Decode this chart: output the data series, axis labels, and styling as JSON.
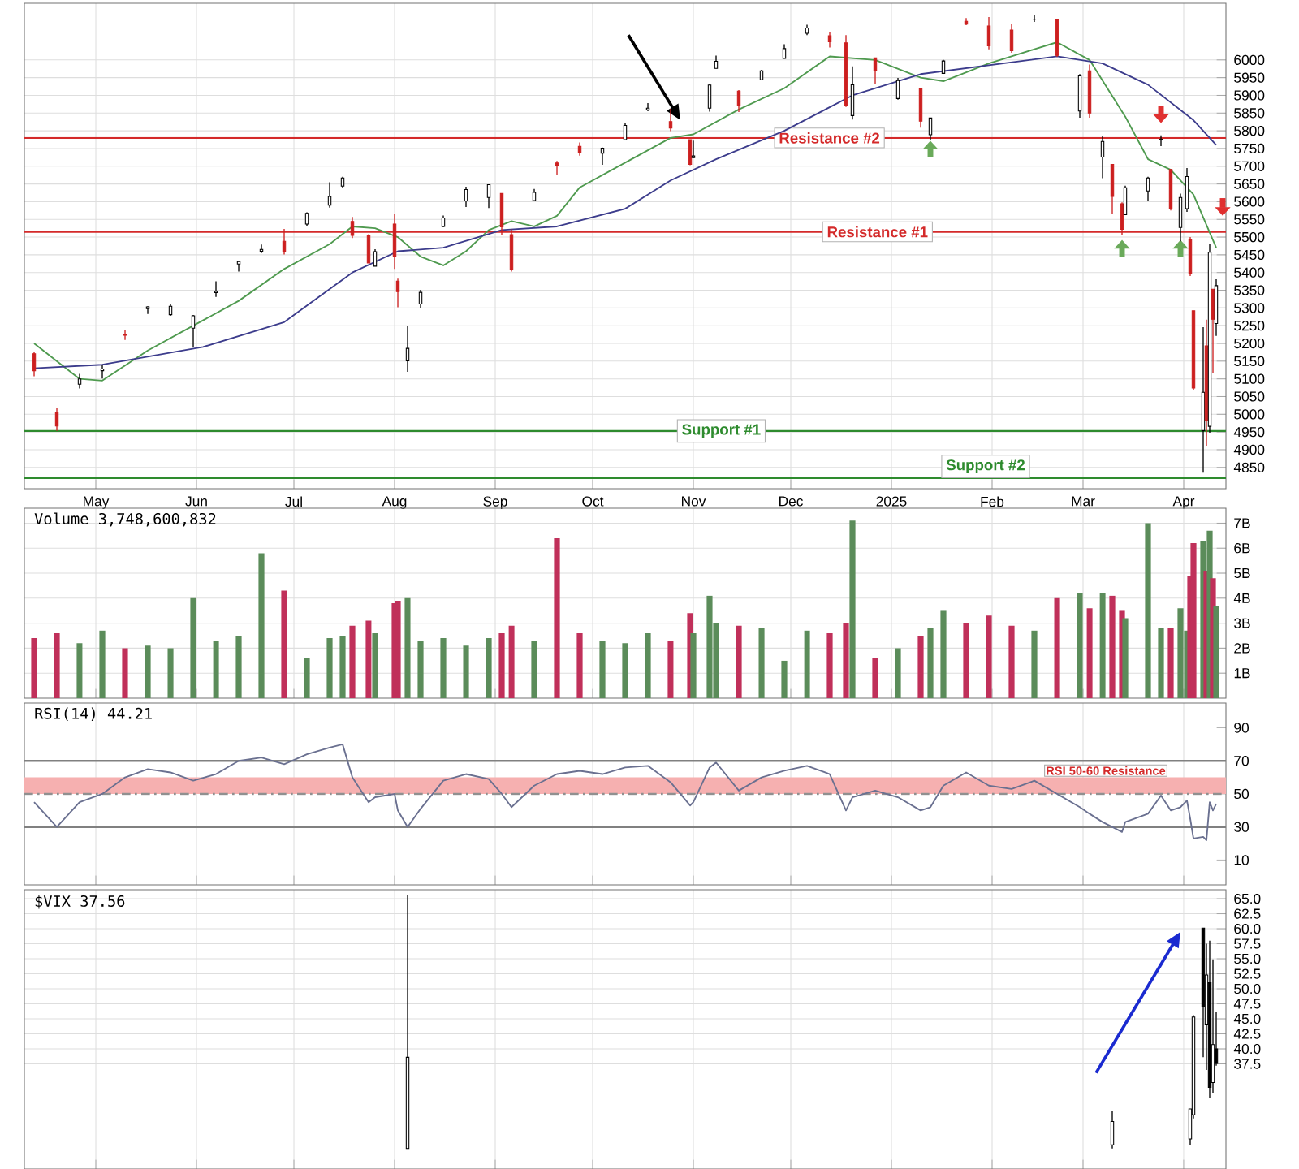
{
  "chart_data": [
    {
      "type": "candlestick",
      "x": [
        "2024-04-12",
        "2024-04-19",
        "2024-04-26",
        "2024-05-03",
        "2024-05-10",
        "2024-05-17",
        "2024-05-24",
        "2024-05-31",
        "2024-06-07",
        "2024-06-14",
        "2024-06-21",
        "2024-06-28",
        "2024-07-05",
        "2024-07-12",
        "2024-07-16",
        "2024-07-19",
        "2024-07-24",
        "2024-07-26",
        "2024-08-01",
        "2024-08-02",
        "2024-08-05",
        "2024-08-09",
        "2024-08-16",
        "2024-08-23",
        "2024-08-30",
        "2024-09-03",
        "2024-09-06",
        "2024-09-13",
        "2024-09-20",
        "2024-09-27",
        "2024-10-04",
        "2024-10-11",
        "2024-10-18",
        "2024-10-25",
        "2024-10-31",
        "2024-11-01",
        "2024-11-06",
        "2024-11-08",
        "2024-11-15",
        "2024-11-22",
        "2024-11-29",
        "2024-12-06",
        "2024-12-13",
        "2024-12-18",
        "2024-12-20",
        "2024-12-27",
        "2025-01-03",
        "2025-01-10",
        "2025-01-13",
        "2025-01-17",
        "2025-01-24",
        "2025-01-31",
        "2025-02-07",
        "2025-02-14",
        "2025-02-21",
        "2025-02-28",
        "2025-03-03",
        "2025-03-07",
        "2025-03-10",
        "2025-03-13",
        "2025-03-14",
        "2025-03-21",
        "2025-03-25",
        "2025-03-28",
        "2025-03-31",
        "2025-04-02",
        "2025-04-03",
        "2025-04-04",
        "2025-04-07",
        "2025-04-08",
        "2025-04-09",
        "2025-04-10",
        "2025-04-11"
      ],
      "ohlc": [
        [
          5171,
          5175,
          5107,
          5123
        ],
        [
          5005,
          5019,
          4953,
          4967
        ],
        [
          5085,
          5114,
          5073,
          5100
        ],
        [
          5123,
          5139,
          5101,
          5128
        ],
        [
          5225,
          5239,
          5210,
          5223
        ],
        [
          5298,
          5305,
          5283,
          5303
        ],
        [
          5281,
          5311,
          5278,
          5305
        ],
        [
          5243,
          5280,
          5191,
          5278
        ],
        [
          5343,
          5375,
          5331,
          5347
        ],
        [
          5424,
          5432,
          5403,
          5431
        ],
        [
          5460,
          5479,
          5455,
          5465
        ],
        [
          5488,
          5523,
          5451,
          5460
        ],
        [
          5537,
          5570,
          5531,
          5567
        ],
        [
          5590,
          5655,
          5583,
          5615
        ],
        [
          5644,
          5670,
          5640,
          5667
        ],
        [
          5544,
          5557,
          5497,
          5505
        ],
        [
          5505,
          5508,
          5427,
          5427
        ],
        [
          5418,
          5466,
          5418,
          5459
        ],
        [
          5537,
          5566,
          5410,
          5446
        ],
        [
          5376,
          5383,
          5302,
          5346
        ],
        [
          5151,
          5250,
          5120,
          5186
        ],
        [
          5311,
          5351,
          5300,
          5344
        ],
        [
          5530,
          5561,
          5528,
          5554
        ],
        [
          5602,
          5642,
          5585,
          5634
        ],
        [
          5612,
          5648,
          5582,
          5648
        ],
        [
          5623,
          5623,
          5506,
          5529
        ],
        [
          5507,
          5522,
          5403,
          5408
        ],
        [
          5603,
          5636,
          5601,
          5626
        ],
        [
          5709,
          5715,
          5675,
          5703
        ],
        [
          5756,
          5767,
          5730,
          5738
        ],
        [
          5737,
          5753,
          5704,
          5751
        ],
        [
          5775,
          5822,
          5775,
          5815
        ],
        [
          5859,
          5878,
          5855,
          5864
        ],
        [
          5826,
          5862,
          5799,
          5808
        ],
        [
          5775,
          5775,
          5703,
          5705
        ],
        [
          5724,
          5772,
          5723,
          5729
        ],
        [
          5864,
          5933,
          5854,
          5929
        ],
        [
          5976,
          6012,
          5976,
          5996
        ],
        [
          5912,
          5915,
          5853,
          5870
        ],
        [
          5944,
          5972,
          5944,
          5969
        ],
        [
          6004,
          6044,
          6004,
          6032
        ],
        [
          6075,
          6099,
          6070,
          6090
        ],
        [
          6068,
          6079,
          6035,
          6051
        ],
        [
          6048,
          6070,
          5867,
          5872
        ],
        [
          5843,
          5982,
          5832,
          5930
        ],
        [
          6006,
          6006,
          5932,
          5971
        ],
        [
          5891,
          5949,
          5888,
          5942
        ],
        [
          5919,
          5920,
          5809,
          5827
        ],
        [
          5789,
          5837,
          5773,
          5836
        ],
        [
          5962,
          6000,
          5962,
          5997
        ],
        [
          6109,
          6118,
          6098,
          6101
        ],
        [
          6096,
          6121,
          6030,
          6040
        ],
        [
          6084,
          6101,
          6020,
          6026
        ],
        [
          6115,
          6127,
          6107,
          6115
        ],
        [
          6114,
          6115,
          6009,
          6013
        ],
        [
          5856,
          5960,
          5837,
          5955
        ],
        [
          5969,
          5987,
          5837,
          5850
        ],
        [
          5726,
          5786,
          5666,
          5770
        ],
        [
          5705,
          5705,
          5565,
          5615
        ],
        [
          5594,
          5598,
          5505,
          5522
        ],
        [
          5563,
          5645,
          5563,
          5639
        ],
        [
          5630,
          5670,
          5603,
          5667
        ],
        [
          5775,
          5787,
          5757,
          5776
        ],
        [
          5691,
          5691,
          5575,
          5581
        ],
        [
          5527,
          5623,
          5488,
          5612
        ],
        [
          5580,
          5695,
          5571,
          5671
        ],
        [
          5492,
          5500,
          5390,
          5397
        ],
        [
          5292,
          5292,
          5069,
          5074
        ],
        [
          4954,
          5246,
          4835,
          5062
        ],
        [
          5193,
          5267,
          4910,
          4982
        ],
        [
          4966,
          5481,
          4948,
          5457
        ],
        [
          5353,
          5353,
          5116,
          5268
        ],
        [
          5256,
          5381,
          5221,
          5363
        ]
      ],
      "colors": [
        "#cc1f1f",
        "#cc1f1f",
        "#000000",
        "#000000",
        "#cc1f1f",
        "#000000",
        "#000000",
        "#000000",
        "#000000",
        "#000000",
        "#000000",
        "#cc1f1f",
        "#000000",
        "#000000",
        "#000000",
        "#cc1f1f",
        "#cc1f1f",
        "#000000",
        "#cc1f1f",
        "#cc1f1f",
        "#000000",
        "#000000",
        "#000000",
        "#000000",
        "#000000",
        "#cc1f1f",
        "#cc1f1f",
        "#000000",
        "#cc1f1f",
        "#cc1f1f",
        "#000000",
        "#000000",
        "#000000",
        "#cc1f1f",
        "#cc1f1f",
        "#000000",
        "#000000",
        "#000000",
        "#cc1f1f",
        "#000000",
        "#000000",
        "#000000",
        "#cc1f1f",
        "#cc1f1f",
        "#000000",
        "#cc1f1f",
        "#000000",
        "#cc1f1f",
        "#000000",
        "#000000",
        "#cc1f1f",
        "#cc1f1f",
        "#cc1f1f",
        "#000000",
        "#cc1f1f",
        "#000000",
        "#cc1f1f",
        "#000000",
        "#cc1f1f",
        "#cc1f1f",
        "#000000",
        "#000000",
        "#000000",
        "#cc1f1f",
        "#000000",
        "#000000",
        "#cc1f1f",
        "#cc1f1f",
        "#000000",
        "#cc1f1f",
        "#000000",
        "#cc1f1f",
        "#000000"
      ],
      "series": [
        {
          "type": "line",
          "color": "#4f9a4f",
          "x": [
            "2024-04-12",
            "2024-04-26",
            "2024-05-03",
            "2024-05-17",
            "2024-05-31",
            "2024-06-14",
            "2024-06-28",
            "2024-07-12",
            "2024-07-19",
            "2024-07-26",
            "2024-08-02",
            "2024-08-09",
            "2024-08-16",
            "2024-08-23",
            "2024-08-30",
            "2024-09-06",
            "2024-09-13",
            "2024-09-20",
            "2024-09-27",
            "2024-10-11",
            "2024-10-25",
            "2024-11-01",
            "2024-11-15",
            "2024-11-29",
            "2024-12-13",
            "2024-12-27",
            "2025-01-10",
            "2025-01-17",
            "2025-01-31",
            "2025-02-14",
            "2025-02-21",
            "2025-03-03",
            "2025-03-14",
            "2025-03-21",
            "2025-03-28",
            "2025-04-04",
            "2025-04-11"
          ],
          "values": [
            5200,
            5100,
            5095,
            5180,
            5250,
            5320,
            5410,
            5480,
            5530,
            5525,
            5500,
            5445,
            5420,
            5460,
            5520,
            5545,
            5530,
            5560,
            5640,
            5710,
            5780,
            5790,
            5860,
            5920,
            6010,
            6000,
            5950,
            5940,
            5990,
            6030,
            6050,
            6000,
            5840,
            5720,
            5690,
            5620,
            5470
          ]
        },
        {
          "type": "line",
          "color": "#3c3c8c",
          "x": [
            "2024-04-12",
            "2024-05-03",
            "2024-06-03",
            "2024-06-28",
            "2024-07-19",
            "2024-08-02",
            "2024-08-16",
            "2024-09-03",
            "2024-09-20",
            "2024-10-11",
            "2024-10-25",
            "2024-11-08",
            "2024-11-29",
            "2024-12-20",
            "2025-01-10",
            "2025-01-31",
            "2025-02-21",
            "2025-03-07",
            "2025-03-21",
            "2025-04-04",
            "2025-04-11"
          ],
          "values": [
            5130,
            5140,
            5190,
            5260,
            5400,
            5460,
            5470,
            5520,
            5530,
            5580,
            5660,
            5720,
            5800,
            5900,
            5960,
            5985,
            6010,
            5990,
            5930,
            5830,
            5760
          ]
        }
      ],
      "ref_lines": [
        {
          "axis": "y",
          "value": 5780,
          "label": "Resistance #2",
          "color": "#d42a2a"
        },
        {
          "axis": "y",
          "value": 5515,
          "label": "Resistance #1",
          "color": "#d42a2a"
        },
        {
          "axis": "y",
          "value": 4953,
          "label": "Support #1",
          "color": "#2e8b2e"
        },
        {
          "axis": "y",
          "value": 4820,
          "label": "Support #2",
          "color": "#2e8b2e"
        }
      ],
      "xlim": [
        "2024-04-09",
        "2025-04-14"
      ],
      "xticks": [
        {
          "value": "2024-05-01",
          "label": "May"
        },
        {
          "value": "2024-06-01",
          "label": "Jun"
        },
        {
          "value": "2024-07-01",
          "label": "Jul"
        },
        {
          "value": "2024-08-01",
          "label": "Aug"
        },
        {
          "value": "2024-09-01",
          "label": "Sep"
        },
        {
          "value": "2024-10-01",
          "label": "Oct"
        },
        {
          "value": "2024-11-01",
          "label": "Nov"
        },
        {
          "value": "2024-12-01",
          "label": "Dec"
        },
        {
          "value": "2025-01-01",
          "label": "2025"
        },
        {
          "value": "2025-02-01",
          "label": "Feb"
        },
        {
          "value": "2025-03-01",
          "label": "Mar"
        },
        {
          "value": "2025-04-01",
          "label": "Apr"
        }
      ],
      "ylim": [
        4790,
        6160
      ],
      "yticks": [
        4850,
        4900,
        4950,
        5000,
        5050,
        5100,
        5150,
        5200,
        5250,
        5300,
        5350,
        5400,
        5450,
        5500,
        5550,
        5600,
        5650,
        5700,
        5750,
        5800,
        5850,
        5900,
        5950,
        6000
      ],
      "grid": true
    },
    {
      "type": "bar",
      "title": "Volume 3,748,600,832",
      "x": [
        "2024-04-12",
        "2024-04-19",
        "2024-04-26",
        "2024-05-03",
        "2024-05-10",
        "2024-05-17",
        "2024-05-24",
        "2024-05-31",
        "2024-06-07",
        "2024-06-14",
        "2024-06-21",
        "2024-06-28",
        "2024-07-05",
        "2024-07-12",
        "2024-07-16",
        "2024-07-19",
        "2024-07-24",
        "2024-07-26",
        "2024-08-01",
        "2024-08-02",
        "2024-08-05",
        "2024-08-09",
        "2024-08-16",
        "2024-08-23",
        "2024-08-30",
        "2024-09-03",
        "2024-09-06",
        "2024-09-13",
        "2024-09-20",
        "2024-09-27",
        "2024-10-04",
        "2024-10-11",
        "2024-10-18",
        "2024-10-25",
        "2024-10-31",
        "2024-11-01",
        "2024-11-06",
        "2024-11-08",
        "2024-11-15",
        "2024-11-22",
        "2024-11-29",
        "2024-12-06",
        "2024-12-13",
        "2024-12-18",
        "2024-12-20",
        "2024-12-27",
        "2025-01-03",
        "2025-01-10",
        "2025-01-13",
        "2025-01-17",
        "2025-01-24",
        "2025-01-31",
        "2025-02-07",
        "2025-02-14",
        "2025-02-21",
        "2025-02-28",
        "2025-03-03",
        "2025-03-07",
        "2025-03-10",
        "2025-03-13",
        "2025-03-14",
        "2025-03-21",
        "2025-03-25",
        "2025-03-28",
        "2025-03-31",
        "2025-04-02",
        "2025-04-03",
        "2025-04-04",
        "2025-04-07",
        "2025-04-08",
        "2025-04-09",
        "2025-04-10",
        "2025-04-11"
      ],
      "values": [
        2.4,
        2.6,
        2.2,
        2.7,
        2.0,
        2.1,
        2.0,
        4.0,
        2.3,
        2.5,
        5.8,
        4.3,
        1.6,
        2.4,
        2.5,
        2.9,
        3.1,
        2.6,
        3.8,
        3.9,
        4.0,
        2.3,
        2.4,
        2.1,
        2.4,
        2.6,
        2.9,
        2.3,
        6.4,
        2.6,
        2.3,
        2.2,
        2.6,
        2.3,
        3.4,
        2.6,
        4.1,
        3.0,
        2.9,
        2.8,
        1.5,
        2.7,
        2.6,
        3.0,
        7.1,
        1.6,
        2.0,
        2.5,
        2.8,
        3.5,
        3.0,
        3.3,
        2.9,
        2.7,
        4.0,
        4.2,
        3.6,
        4.2,
        4.1,
        3.5,
        3.2,
        7.0,
        2.8,
        2.8,
        3.6,
        2.7,
        4.9,
        6.2,
        6.3,
        5.1,
        6.7,
        4.8,
        3.7
      ],
      "colors": [
        "#c0305a",
        "#c0305a",
        "#5b8c5a",
        "#5b8c5a",
        "#c0305a",
        "#5b8c5a",
        "#5b8c5a",
        "#5b8c5a",
        "#5b8c5a",
        "#5b8c5a",
        "#5b8c5a",
        "#c0305a",
        "#5b8c5a",
        "#5b8c5a",
        "#5b8c5a",
        "#c0305a",
        "#c0305a",
        "#5b8c5a",
        "#c0305a",
        "#c0305a",
        "#5b8c5a",
        "#5b8c5a",
        "#5b8c5a",
        "#5b8c5a",
        "#5b8c5a",
        "#c0305a",
        "#c0305a",
        "#5b8c5a",
        "#c0305a",
        "#c0305a",
        "#5b8c5a",
        "#5b8c5a",
        "#5b8c5a",
        "#c0305a",
        "#c0305a",
        "#5b8c5a",
        "#5b8c5a",
        "#5b8c5a",
        "#c0305a",
        "#5b8c5a",
        "#5b8c5a",
        "#5b8c5a",
        "#c0305a",
        "#c0305a",
        "#5b8c5a",
        "#c0305a",
        "#5b8c5a",
        "#c0305a",
        "#5b8c5a",
        "#5b8c5a",
        "#c0305a",
        "#c0305a",
        "#c0305a",
        "#5b8c5a",
        "#c0305a",
        "#5b8c5a",
        "#c0305a",
        "#5b8c5a",
        "#c0305a",
        "#c0305a",
        "#5b8c5a",
        "#5b8c5a",
        "#5b8c5a",
        "#c0305a",
        "#5b8c5a",
        "#5b8c5a",
        "#c0305a",
        "#c0305a",
        "#5b8c5a",
        "#c0305a",
        "#5b8c5a",
        "#c0305a",
        "#5b8c5a"
      ],
      "xlim": [
        "2024-04-09",
        "2025-04-14"
      ],
      "xticks": [
        {
          "value": "2024-05-01",
          "label": null
        },
        {
          "value": "2024-06-01",
          "label": null
        },
        {
          "value": "2024-07-01",
          "label": null
        },
        {
          "value": "2024-08-01",
          "label": null
        },
        {
          "value": "2024-09-01",
          "label": null
        },
        {
          "value": "2024-10-01",
          "label": null
        },
        {
          "value": "2024-11-01",
          "label": null
        },
        {
          "value": "2024-12-01",
          "label": null
        },
        {
          "value": "2025-01-01",
          "label": null
        },
        {
          "value": "2025-02-01",
          "label": null
        },
        {
          "value": "2025-03-01",
          "label": null
        },
        {
          "value": "2025-04-01",
          "label": null
        }
      ],
      "ylim": [
        0,
        7.6
      ],
      "yticks": [
        {
          "value": 1,
          "label": "1B"
        },
        {
          "value": 2,
          "label": "2B"
        },
        {
          "value": 3,
          "label": "3B"
        },
        {
          "value": 4,
          "label": "4B"
        },
        {
          "value": 5,
          "label": "5B"
        },
        {
          "value": 6,
          "label": "6B"
        },
        {
          "value": 7,
          "label": "7B"
        }
      ],
      "tick_labels": "y",
      "grid": true
    },
    {
      "type": "line",
      "title": "RSI(14) 44.21",
      "x": [
        "2024-04-12",
        "2024-04-19",
        "2024-04-26",
        "2024-05-03",
        "2024-05-10",
        "2024-05-17",
        "2024-05-24",
        "2024-05-31",
        "2024-06-07",
        "2024-06-14",
        "2024-06-21",
        "2024-06-28",
        "2024-07-05",
        "2024-07-12",
        "2024-07-16",
        "2024-07-19",
        "2024-07-24",
        "2024-07-26",
        "2024-08-01",
        "2024-08-02",
        "2024-08-05",
        "2024-08-09",
        "2024-08-16",
        "2024-08-23",
        "2024-08-30",
        "2024-09-03",
        "2024-09-06",
        "2024-09-13",
        "2024-09-20",
        "2024-09-27",
        "2024-10-04",
        "2024-10-11",
        "2024-10-18",
        "2024-10-25",
        "2024-10-31",
        "2024-11-01",
        "2024-11-06",
        "2024-11-08",
        "2024-11-15",
        "2024-11-22",
        "2024-11-29",
        "2024-12-06",
        "2024-12-13",
        "2024-12-18",
        "2024-12-20",
        "2024-12-27",
        "2025-01-03",
        "2025-01-10",
        "2025-01-13",
        "2025-01-17",
        "2025-01-24",
        "2025-01-31",
        "2025-02-07",
        "2025-02-14",
        "2025-02-21",
        "2025-02-28",
        "2025-03-03",
        "2025-03-07",
        "2025-03-10",
        "2025-03-13",
        "2025-03-14",
        "2025-03-21",
        "2025-03-25",
        "2025-03-28",
        "2025-03-31",
        "2025-04-02",
        "2025-04-03",
        "2025-04-04",
        "2025-04-07",
        "2025-04-08",
        "2025-04-09",
        "2025-04-10",
        "2025-04-11"
      ],
      "series": [
        {
          "color": "#6a7090",
          "values": [
            45,
            30,
            45,
            50,
            60,
            65,
            63,
            58,
            62,
            70,
            72,
            68,
            74,
            78,
            80,
            60,
            45,
            48,
            50,
            40,
            30,
            41,
            58,
            62,
            59,
            50,
            42,
            55,
            62,
            64,
            62,
            66,
            67,
            57,
            43,
            45,
            66,
            69,
            52,
            60,
            64,
            67,
            62,
            40,
            48,
            52,
            48,
            40,
            42,
            55,
            63,
            55,
            53,
            58,
            50,
            42,
            38,
            33,
            30,
            27,
            33,
            38,
            49,
            40,
            42,
            46,
            35,
            23,
            24,
            22,
            45,
            40,
            44
          ]
        }
      ],
      "ref_lines": [
        {
          "axis": "y",
          "value": 70,
          "color": "#808080"
        },
        {
          "axis": "y",
          "value": 50,
          "color": "#909090",
          "line_style": "dashed"
        },
        {
          "axis": "y",
          "value": 30,
          "color": "#808080"
        }
      ],
      "bands": [
        {
          "axis": "y",
          "from": 50,
          "to": 60,
          "label": "RSI 50-60 Resistance",
          "color": "#f6b0b0"
        }
      ],
      "xlim": [
        "2024-04-09",
        "2025-04-14"
      ],
      "xticks": [
        {
          "value": "2024-05-01",
          "label": null
        },
        {
          "value": "2024-06-01",
          "label": null
        },
        {
          "value": "2024-07-01",
          "label": null
        },
        {
          "value": "2024-08-01",
          "label": null
        },
        {
          "value": "2024-09-01",
          "label": null
        },
        {
          "value": "2024-10-01",
          "label": null
        },
        {
          "value": "2024-11-01",
          "label": null
        },
        {
          "value": "2024-12-01",
          "label": null
        },
        {
          "value": "2025-01-01",
          "label": null
        },
        {
          "value": "2025-02-01",
          "label": null
        },
        {
          "value": "2025-03-01",
          "label": null
        },
        {
          "value": "2025-04-01",
          "label": null
        }
      ],
      "ylim": [
        -5,
        105
      ],
      "yticks": [
        10,
        30,
        50,
        70,
        90
      ],
      "tick_labels": "y",
      "grid": "x"
    },
    {
      "type": "candlestick",
      "title": "$VIX 37.56",
      "x": [
        "2024-08-05",
        "2025-03-10",
        "2025-04-03",
        "2025-04-04",
        "2025-04-07",
        "2025-04-08",
        "2025-04-09",
        "2025-04-10",
        "2025-04-11"
      ],
      "ohlc": [
        [
          23.4,
          65.7,
          23.4,
          38.6
        ],
        [
          24.0,
          29.6,
          23.4,
          27.9
        ],
        [
          25.0,
          30.0,
          24.0,
          30.0
        ],
        [
          29.0,
          45.6,
          28.4,
          45.3
        ],
        [
          60.1,
          60.1,
          38.6,
          47.0
        ],
        [
          44.0,
          57.5,
          36.5,
          52.3
        ],
        [
          51.0,
          58.0,
          31.9,
          33.6
        ],
        [
          34.4,
          54.9,
          32.7,
          40.7
        ],
        [
          40.0,
          46.1,
          37.2,
          37.56
        ]
      ],
      "colors": [
        "#000000",
        "#000000",
        "#000000",
        "#000000",
        "#000000",
        "#000000",
        "#000000",
        "#000000",
        "#000000"
      ],
      "xlim": [
        "2024-04-09",
        "2025-04-14"
      ],
      "xticks": [
        {
          "value": "2024-05-01",
          "label": null
        },
        {
          "value": "2024-06-01",
          "label": null
        },
        {
          "value": "2024-07-01",
          "label": null
        },
        {
          "value": "2024-08-01",
          "label": null
        },
        {
          "value": "2024-09-01",
          "label": null
        },
        {
          "value": "2024-10-01",
          "label": null
        },
        {
          "value": "2024-11-01",
          "label": null
        },
        {
          "value": "2024-12-01",
          "label": null
        },
        {
          "value": "2025-01-01",
          "label": null
        },
        {
          "value": "2025-02-01",
          "label": null
        },
        {
          "value": "2025-03-01",
          "label": null
        },
        {
          "value": "2025-04-01",
          "label": null
        }
      ],
      "ylim": [
        20,
        66.5
      ],
      "yticks": [
        {
          "value": 37.5,
          "label": "37.5"
        },
        {
          "value": 40,
          "label": "40.0"
        },
        {
          "value": 42.5,
          "label": "42.5"
        },
        {
          "value": 45,
          "label": "45.0"
        },
        {
          "value": 47.5,
          "label": "47.5"
        },
        {
          "value": 50,
          "label": "50.0"
        },
        {
          "value": 52.5,
          "label": "52.5"
        },
        {
          "value": 55,
          "label": "55.0"
        },
        {
          "value": 57.5,
          "label": "57.5"
        },
        {
          "value": 60,
          "label": "60.0"
        },
        {
          "value": 62.5,
          "label": "62.5"
        },
        {
          "value": 65,
          "label": "65.0"
        }
      ],
      "tick_labels": "y",
      "grid": true
    }
  ]
}
